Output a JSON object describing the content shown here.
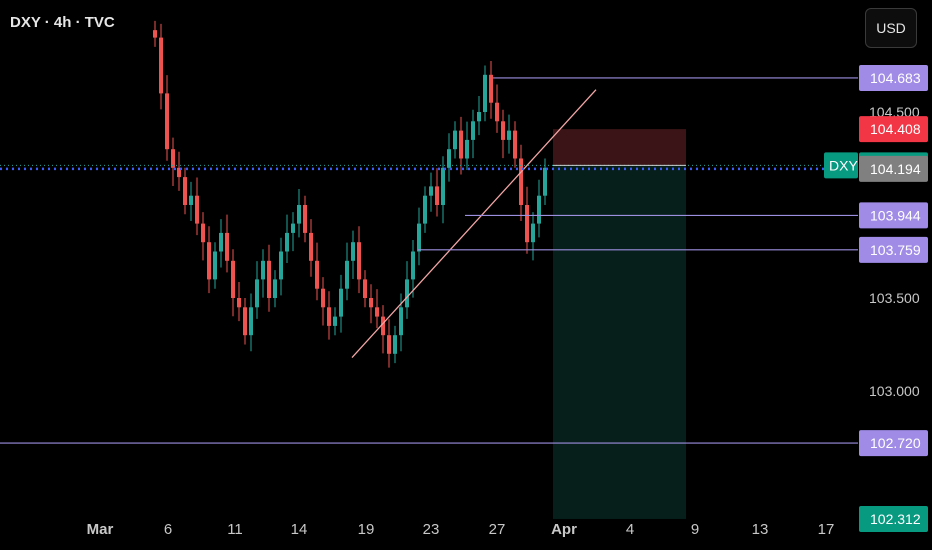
{
  "header": {
    "symbol": "DXY · 4h · TVC",
    "currency_button": "USD"
  },
  "colors": {
    "up": "#26a69a",
    "down": "#ef5350",
    "level_line": "#9c8fe0",
    "level_badge": "#a08be6",
    "trendline": "#f4a6a6",
    "dotted_line": "#3d5cf5",
    "stop_zone": "#3a1416",
    "target_zone": "#071f1b"
  },
  "chart_data": {
    "type": "candlestick",
    "symbol": "DXY",
    "timeframe": "4h",
    "source": "TVC",
    "x_tick_labels": [
      "Mar",
      "6",
      "11",
      "14",
      "19",
      "23",
      "27",
      "Apr",
      "4",
      "9",
      "13",
      "17"
    ],
    "y_tick_labels": [
      "104.500",
      "103.500",
      "103.000"
    ],
    "ylim": [
      102.3,
      104.95
    ],
    "price_levels": [
      {
        "label": "104.683",
        "value": 104.683,
        "kind": "horizontal-line"
      },
      {
        "label": "104.408",
        "value": 104.408,
        "kind": "stop-loss"
      },
      {
        "label": "104.213",
        "value": 104.213,
        "kind": "last-price",
        "tag": "DXY"
      },
      {
        "label": "104.194",
        "value": 104.194,
        "kind": "dotted-line"
      },
      {
        "label": "103.944",
        "value": 103.944,
        "kind": "horizontal-line"
      },
      {
        "label": "103.759",
        "value": 103.759,
        "kind": "horizontal-line"
      },
      {
        "label": "102.720",
        "value": 102.72,
        "kind": "horizontal-line"
      },
      {
        "label": "102.312",
        "value": 102.312,
        "kind": "take-profit"
      }
    ],
    "trendline": {
      "from": {
        "date": "Mar 18",
        "price": 103.18
      },
      "to": {
        "date": "Mar 29",
        "price": 104.62
      }
    },
    "position": {
      "side": "short",
      "entry": 104.213,
      "stop": 104.408,
      "target": 102.312
    },
    "candles_approx": [
      104.9,
      104.6,
      104.3,
      104.2,
      104.15,
      104.0,
      104.05,
      103.9,
      103.8,
      103.6,
      103.75,
      103.85,
      103.7,
      103.5,
      103.45,
      103.3,
      103.45,
      103.6,
      103.7,
      103.5,
      103.6,
      103.75,
      103.85,
      103.9,
      104.0,
      103.85,
      103.7,
      103.55,
      103.45,
      103.35,
      103.4,
      103.55,
      103.7,
      103.8,
      103.6,
      103.5,
      103.45,
      103.4,
      103.3,
      103.2,
      103.3,
      103.45,
      103.6,
      103.75,
      103.9,
      104.05,
      104.1,
      104.0,
      104.2,
      104.3,
      104.4,
      104.25,
      104.35,
      104.45,
      104.5,
      104.7,
      104.55,
      104.45,
      104.35,
      104.4,
      104.25,
      104.0,
      103.8,
      103.9,
      104.05,
      104.2
    ]
  }
}
